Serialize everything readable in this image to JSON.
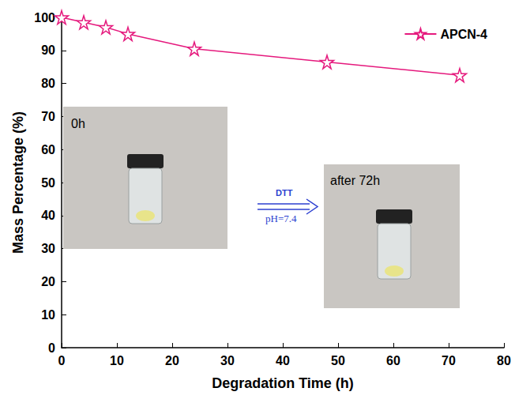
{
  "chart_data": {
    "type": "line",
    "x_label": "Degradation Time (h)",
    "y_label": "Mass Percentage (%)",
    "x": [
      0,
      4,
      8,
      12,
      24,
      48,
      72
    ],
    "series": [
      {
        "name": "APCN-4",
        "color": "#e5197d",
        "marker": "star",
        "values": [
          100,
          98.5,
          97,
          95,
          90.5,
          86.5,
          82.5
        ]
      }
    ],
    "xlim": [
      0,
      80
    ],
    "xticks": [
      0,
      10,
      20,
      30,
      40,
      50,
      60,
      70,
      80
    ],
    "ylim": [
      0,
      100
    ],
    "yticks": [
      0,
      10,
      20,
      30,
      40,
      50,
      60,
      70,
      80,
      90,
      100
    ],
    "grid": false,
    "legend": "upper right",
    "annotations": [
      "0h",
      "DTT",
      "pH=7.4",
      "after 72h"
    ]
  }
}
